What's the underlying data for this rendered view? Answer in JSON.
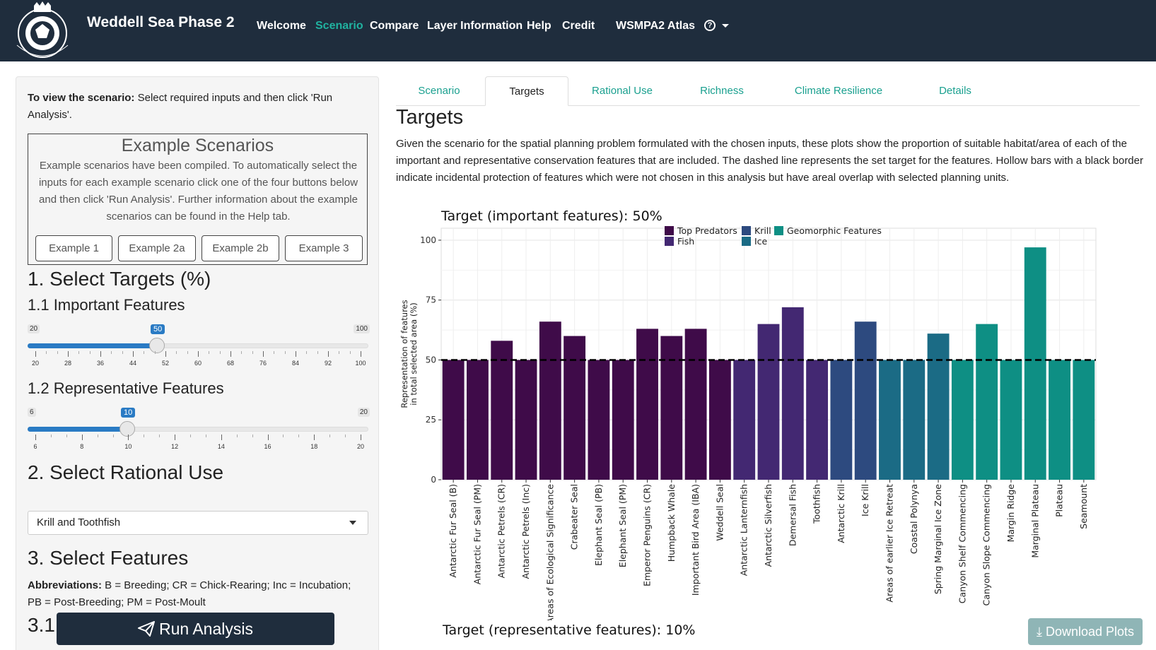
{
  "navbar": {
    "brand": "Weddell Sea Phase 2",
    "logo_text": "NORWEGIAN POLAR INSTITUTE",
    "items": [
      {
        "label": "Welcome",
        "active": false
      },
      {
        "label": "Scenario",
        "active": true
      },
      {
        "label": "Compare",
        "active": false
      },
      {
        "label": "Layer Information",
        "active": false
      },
      {
        "label": "Help",
        "active": false
      },
      {
        "label": "Credit",
        "active": false
      },
      {
        "label": "WSMPA2 Atlas",
        "active": false
      }
    ],
    "help_icon": "question-circle-icon",
    "accent_color": "#20b2a0",
    "bg_color": "#1f2d3d"
  },
  "sidebar": {
    "intro_bold": "To view the scenario:",
    "intro_text": " Select required inputs and then click 'Run Analysis'.",
    "examples": {
      "title": "Example Scenarios",
      "text": "Example scenarios have been compiled. To automatically select the inputs for each example scenario click one of the four buttons below and then click 'Run Analysis'. Further information about the example scenarios can be found in the Help tab.",
      "buttons": [
        "Example 1",
        "Example 2a",
        "Example 2b",
        "Example 3"
      ]
    },
    "section1_title": "1. Select Targets (%)",
    "important": {
      "title": "1.1 Important Features",
      "min": 20,
      "max": 100,
      "value": 50,
      "min_label": "20",
      "max_label": "100",
      "value_label": "50",
      "ticks": [
        "20",
        "28",
        "36",
        "44",
        "52",
        "60",
        "68",
        "76",
        "84",
        "92",
        "100"
      ]
    },
    "representative": {
      "title": "1.2 Representative Features",
      "min": 6,
      "max": 20,
      "value": 10,
      "min_label": "6",
      "max_label": "20",
      "value_label": "10",
      "ticks": [
        "6",
        "8",
        "10",
        "12",
        "14",
        "16",
        "18",
        "20"
      ]
    },
    "section2_title": "2. Select Rational Use",
    "rational_use_value": "Krill and Toothfish",
    "section3_title": "3. Select Features",
    "abbrev_bold": "Abbreviations:",
    "abbrev_text": " B = Breeding; CR = Chick-Rearing; Inc = Incubation; PB = Post-Breeding; PM = Post-Moult",
    "section31_title": "3.1",
    "run_button": "Run Analysis"
  },
  "main": {
    "tabs": [
      {
        "label": "Scenario",
        "active": false
      },
      {
        "label": "Targets",
        "active": true
      },
      {
        "label": "Rational Use",
        "active": false
      },
      {
        "label": "Richness",
        "active": false
      },
      {
        "label": "Climate Resilience",
        "active": false
      },
      {
        "label": "Details",
        "active": false
      }
    ],
    "title": "Targets",
    "description": "Given the scenario for the spatial planning problem formulated with the chosen inputs, these plots show the proportion of suitable habitat/area of each of the important and representative conservation features that are included. The dashed line represents the set target for the features. Hollow bars with a black border indicate incidental protection of features which were not chosen in this analysis but have areal overlap with selected planning units.",
    "download_button": "Download Plots",
    "chart2_title": "Target (representative features): 10%"
  },
  "chart_data": {
    "type": "bar",
    "title": "Target (important features): 50%",
    "ylabel": "Representation of features in total selected area (%)",
    "ylabel_lines": [
      "Representation of features",
      "in total selected area (%)"
    ],
    "ylim": [
      0,
      105
    ],
    "yticks": [
      0,
      25,
      50,
      75,
      100
    ],
    "target": 50,
    "legend": [
      {
        "name": "Top Predators",
        "color": "#3f0b49"
      },
      {
        "name": "Fish",
        "color": "#432872"
      },
      {
        "name": "Krill",
        "color": "#2d4a7f"
      },
      {
        "name": "Ice",
        "color": "#1b6b85"
      },
      {
        "name": "Geomorphic Features",
        "color": "#0e8f84"
      }
    ],
    "categories": [
      "Antarctic Fur Seal (B)",
      "Antarctic Fur Seal (PM)",
      "Antarctic Petrels (CR)",
      "Antarctic Petrels (Inc)",
      "Areas of Ecological Significance",
      "Crabeater Seal",
      "Elephant Seal (PB)",
      "Elephant Seal (PM)",
      "Emperor Penguins (CR)",
      "Humpback Whale",
      "Important Bird Area (IBA)",
      "Weddell Seal",
      "Antarctic Lanternfish",
      "Antarctic Silverfish",
      "Demersal Fish",
      "Toothfish",
      "Antarctic Krill",
      "Ice Krill",
      "Areas of earlier Ice Retreat",
      "Coastal Polynya",
      "Spring Marginal Ice Zone",
      "Canyon Shelf Commencing",
      "Canyon Slope Commencing",
      "Margin Ridge",
      "Marginal Plateau",
      "Plateau",
      "Seamount"
    ],
    "groups": [
      "Top Predators",
      "Top Predators",
      "Top Predators",
      "Top Predators",
      "Top Predators",
      "Top Predators",
      "Top Predators",
      "Top Predators",
      "Top Predators",
      "Top Predators",
      "Top Predators",
      "Top Predators",
      "Fish",
      "Fish",
      "Fish",
      "Fish",
      "Krill",
      "Krill",
      "Ice",
      "Ice",
      "Ice",
      "Geomorphic Features",
      "Geomorphic Features",
      "Geomorphic Features",
      "Geomorphic Features",
      "Geomorphic Features",
      "Geomorphic Features"
    ],
    "values": [
      50,
      50,
      58,
      50,
      66,
      60,
      50,
      50,
      63,
      60,
      63,
      50,
      50,
      65,
      72,
      50,
      50,
      66,
      50,
      50,
      61,
      50,
      65,
      50,
      97,
      50,
      50
    ]
  }
}
